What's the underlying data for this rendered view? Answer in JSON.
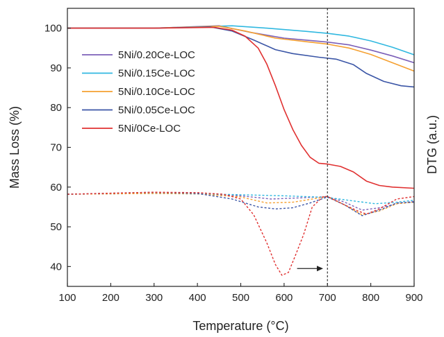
{
  "chart_data": {
    "type": "line",
    "xlabel": "Temperature (°C)",
    "ylabel": "Mass Loss (%)",
    "ylabel_right": "DTG (a.u.)",
    "xlim": [
      100,
      900
    ],
    "ylim": [
      35,
      105
    ],
    "x_ticks": [
      100,
      200,
      300,
      400,
      500,
      600,
      700,
      800,
      900
    ],
    "y_ticks": [
      40,
      50,
      60,
      70,
      80,
      90,
      100
    ],
    "reference_line_x": 700,
    "legend_position": "upper-left",
    "grid": false,
    "series": [
      {
        "name": "5Ni/0.20Ce-LOC",
        "color": "#7b5fb8",
        "x": [
          100,
          300,
          450,
          520,
          600,
          650,
          700,
          750,
          800,
          850,
          900
        ],
        "y": [
          100,
          100,
          100.6,
          99.0,
          97.5,
          97.0,
          96.5,
          95.8,
          94.5,
          93.0,
          91.3
        ]
      },
      {
        "name": "5Ni/0.15Ce-LOC",
        "color": "#30b8e0",
        "x": [
          100,
          300,
          480,
          560,
          650,
          700,
          750,
          800,
          850,
          900
        ],
        "y": [
          100,
          100,
          100.6,
          100.0,
          99.2,
          98.7,
          98.0,
          96.8,
          95.2,
          93.3
        ]
      },
      {
        "name": "5Ni/0.10Ce-LOC",
        "color": "#f5a030",
        "x": [
          100,
          300,
          450,
          510,
          580,
          650,
          700,
          750,
          800,
          850,
          900
        ],
        "y": [
          100,
          100,
          100.5,
          99.3,
          97.5,
          96.6,
          96.0,
          95.0,
          93.4,
          91.3,
          89.2
        ]
      },
      {
        "name": "5Ni/0.05Ce-LOC",
        "color": "#3a55a6",
        "x": [
          100,
          300,
          430,
          480,
          530,
          580,
          620,
          680,
          720,
          760,
          790,
          830,
          870,
          900
        ],
        "y": [
          100,
          100,
          100.3,
          99.3,
          97.0,
          94.6,
          93.6,
          92.7,
          92.2,
          90.8,
          88.6,
          86.6,
          85.5,
          85.2
        ]
      },
      {
        "name": "5Ni/0Ce-LOC",
        "color": "#e03030",
        "x": [
          100,
          300,
          440,
          480,
          510,
          540,
          560,
          580,
          600,
          620,
          640,
          660,
          680,
          700,
          730,
          760,
          790,
          820,
          850,
          900
        ],
        "y": [
          100,
          100,
          100.2,
          99.5,
          98.0,
          95.0,
          91.0,
          85.5,
          79.5,
          74.5,
          70.5,
          67.5,
          66.0,
          65.8,
          65.2,
          63.8,
          61.5,
          60.4,
          60.0,
          59.7
        ]
      }
    ],
    "dtg_series": [
      {
        "color": "#7b5fb8",
        "x": [
          100,
          300,
          400,
          500,
          570,
          640,
          700,
          740,
          780,
          820,
          860,
          900
        ],
        "y": [
          58.2,
          58.5,
          58.3,
          57.8,
          57.0,
          57.3,
          57.6,
          56.2,
          54.2,
          54.8,
          55.8,
          56.4
        ]
      },
      {
        "color": "#30b8e0",
        "x": [
          100,
          300,
          450,
          600,
          700,
          760,
          810,
          860,
          900
        ],
        "y": [
          58.2,
          58.4,
          58.2,
          57.8,
          57.4,
          56.5,
          55.8,
          56.2,
          56.7
        ]
      },
      {
        "color": "#f5a030",
        "x": [
          100,
          300,
          400,
          500,
          560,
          620,
          700,
          740,
          780,
          820,
          860,
          900
        ],
        "y": [
          58.2,
          58.4,
          58.3,
          57.5,
          56.0,
          56.2,
          57.6,
          55.5,
          53.0,
          54.0,
          55.8,
          56.2
        ]
      },
      {
        "color": "#3a55a6",
        "x": [
          100,
          300,
          400,
          480,
          540,
          580,
          620,
          660,
          700,
          740,
          780,
          820,
          860,
          900
        ],
        "y": [
          58.2,
          58.7,
          58.4,
          57.0,
          55.0,
          54.5,
          54.8,
          56.0,
          57.5,
          55.5,
          52.8,
          54.2,
          56.0,
          56.2
        ]
      },
      {
        "color": "#e03030",
        "x": [
          100,
          300,
          400,
          460,
          500,
          530,
          560,
          580,
          595,
          610,
          625,
          645,
          665,
          690,
          700,
          740,
          770,
          790,
          820,
          860,
          900
        ],
        "y": [
          58.2,
          58.7,
          58.6,
          58.2,
          57.0,
          53.0,
          46.0,
          40.5,
          37.8,
          38.5,
          42.5,
          48.0,
          55.0,
          57.6,
          57.6,
          55.5,
          54.0,
          53.2,
          54.5,
          57.0,
          57.6
        ]
      }
    ],
    "arrow": {
      "x_from": 630,
      "x_to": 690,
      "y": 39.5,
      "color": "#222222"
    }
  }
}
